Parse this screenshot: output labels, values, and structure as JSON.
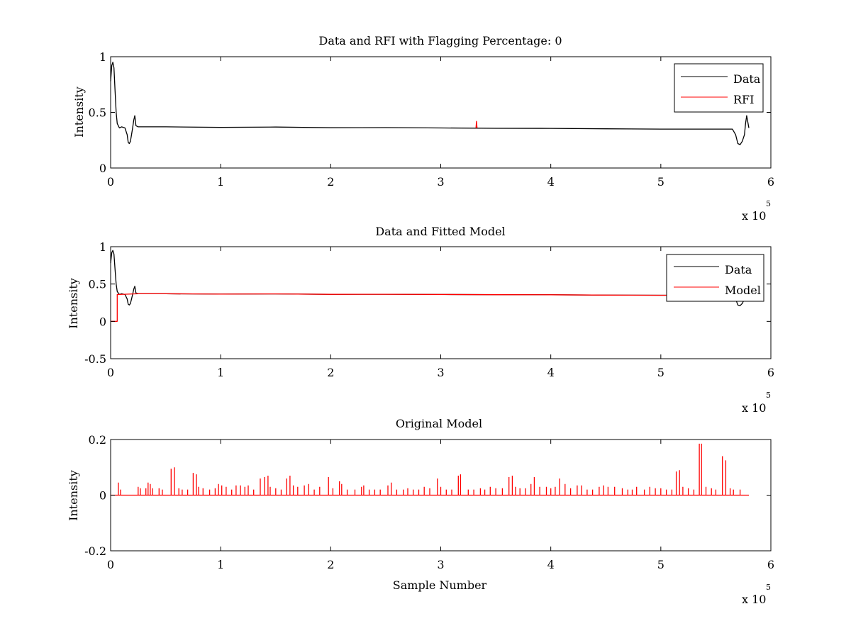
{
  "figure": {
    "background": "#ffffff"
  },
  "colors": {
    "data": "#000000",
    "rfi": "#ff0000",
    "model": "#ff0000",
    "axis": "#000000"
  },
  "chart_data": [
    {
      "type": "line",
      "title": "Data and RFI with Flagging Percentage: 0",
      "xlabel": "",
      "ylabel": "Intensity",
      "xlim": [
        0,
        600000
      ],
      "ylim": [
        0,
        1
      ],
      "xticks": [
        0,
        100000,
        200000,
        300000,
        400000,
        500000,
        600000
      ],
      "xtick_labels": [
        "0",
        "1",
        "2",
        "3",
        "4",
        "5",
        "6"
      ],
      "yticks": [
        0,
        0.5,
        1
      ],
      "ytick_labels": [
        "0",
        "0.5",
        "1"
      ],
      "x_multiplier": "x 10",
      "x_multiplier_exp": "5",
      "legend": {
        "position": "top-right",
        "entries": [
          {
            "label": "Data",
            "color": "#000000"
          },
          {
            "label": "RFI",
            "color": "#ff0000"
          }
        ]
      },
      "series": [
        {
          "name": "Data",
          "color": "#000000",
          "points": [
            [
              0,
              0.78
            ],
            [
              1000,
              0.92
            ],
            [
              2000,
              0.95
            ],
            [
              3000,
              0.9
            ],
            [
              4000,
              0.7
            ],
            [
              5000,
              0.5
            ],
            [
              6000,
              0.4
            ],
            [
              8000,
              0.36
            ],
            [
              10000,
              0.37
            ],
            [
              13000,
              0.36
            ],
            [
              15000,
              0.3
            ],
            [
              16000,
              0.23
            ],
            [
              17000,
              0.22
            ],
            [
              18000,
              0.24
            ],
            [
              19000,
              0.3
            ],
            [
              20000,
              0.36
            ],
            [
              21000,
              0.43
            ],
            [
              22000,
              0.47
            ],
            [
              23000,
              0.38
            ],
            [
              25000,
              0.37
            ],
            [
              50000,
              0.37
            ],
            [
              100000,
              0.365
            ],
            [
              150000,
              0.368
            ],
            [
              200000,
              0.362
            ],
            [
              250000,
              0.363
            ],
            [
              300000,
              0.36
            ],
            [
              350000,
              0.357
            ],
            [
              400000,
              0.356
            ],
            [
              450000,
              0.352
            ],
            [
              500000,
              0.35
            ],
            [
              550000,
              0.35
            ],
            [
              565000,
              0.35
            ],
            [
              568000,
              0.3
            ],
            [
              570000,
              0.22
            ],
            [
              572000,
              0.21
            ],
            [
              574000,
              0.24
            ],
            [
              576000,
              0.3
            ],
            [
              577000,
              0.4
            ],
            [
              578000,
              0.47
            ],
            [
              580000,
              0.36
            ]
          ]
        },
        {
          "name": "RFI",
          "color": "#ff0000",
          "points": [
            [
              332000,
              0.36
            ],
            [
              332500,
              0.42
            ],
            [
              333000,
              0.36
            ]
          ]
        }
      ]
    },
    {
      "type": "line",
      "title": "Data and Fitted Model",
      "xlabel": "",
      "ylabel": "Intensity",
      "xlim": [
        0,
        600000
      ],
      "ylim": [
        -0.5,
        1
      ],
      "xticks": [
        0,
        100000,
        200000,
        300000,
        400000,
        500000,
        600000
      ],
      "xtick_labels": [
        "0",
        "1",
        "2",
        "3",
        "4",
        "5",
        "6"
      ],
      "yticks": [
        -0.5,
        0,
        0.5,
        1
      ],
      "ytick_labels": [
        "-0.5",
        "0",
        "0.5",
        "1"
      ],
      "x_multiplier": "x 10",
      "x_multiplier_exp": "5",
      "legend": {
        "position": "top-right",
        "entries": [
          {
            "label": "Data",
            "color": "#000000"
          },
          {
            "label": "Model",
            "color": "#ff0000"
          }
        ]
      },
      "series": [
        {
          "name": "Data",
          "color": "#000000",
          "points": [
            [
              0,
              0.78
            ],
            [
              1000,
              0.92
            ],
            [
              2000,
              0.95
            ],
            [
              3000,
              0.9
            ],
            [
              4000,
              0.7
            ],
            [
              5000,
              0.5
            ],
            [
              6000,
              0.4
            ],
            [
              8000,
              0.36
            ],
            [
              10000,
              0.37
            ],
            [
              13000,
              0.36
            ],
            [
              15000,
              0.3
            ],
            [
              16000,
              0.23
            ],
            [
              17000,
              0.22
            ],
            [
              18000,
              0.24
            ],
            [
              19000,
              0.3
            ],
            [
              20000,
              0.36
            ],
            [
              21000,
              0.43
            ],
            [
              22000,
              0.47
            ],
            [
              23000,
              0.38
            ],
            [
              25000,
              0.37
            ],
            [
              50000,
              0.37
            ],
            [
              100000,
              0.365
            ],
            [
              150000,
              0.368
            ],
            [
              200000,
              0.362
            ],
            [
              250000,
              0.363
            ],
            [
              300000,
              0.36
            ],
            [
              350000,
              0.357
            ],
            [
              400000,
              0.356
            ],
            [
              450000,
              0.352
            ],
            [
              500000,
              0.35
            ],
            [
              550000,
              0.35
            ],
            [
              565000,
              0.35
            ],
            [
              568000,
              0.3
            ],
            [
              570000,
              0.22
            ],
            [
              572000,
              0.21
            ],
            [
              574000,
              0.24
            ],
            [
              576000,
              0.3
            ],
            [
              577000,
              0.4
            ],
            [
              578000,
              0.47
            ],
            [
              580000,
              0.36
            ]
          ]
        },
        {
          "name": "Model",
          "color": "#ff0000",
          "points": [
            [
              0,
              0
            ],
            [
              6000,
              0
            ],
            [
              6000,
              0.36
            ],
            [
              8000,
              0.36
            ],
            [
              25000,
              0.37
            ],
            [
              50000,
              0.37
            ],
            [
              100000,
              0.365
            ],
            [
              150000,
              0.368
            ],
            [
              200000,
              0.362
            ],
            [
              250000,
              0.363
            ],
            [
              300000,
              0.36
            ],
            [
              350000,
              0.357
            ],
            [
              400000,
              0.356
            ],
            [
              450000,
              0.352
            ],
            [
              500000,
              0.35
            ],
            [
              550000,
              0.35
            ],
            [
              580000,
              0.35
            ]
          ]
        }
      ]
    },
    {
      "type": "line",
      "title": "Original Model",
      "xlabel": "Sample Number",
      "ylabel": "Intensity",
      "xlim": [
        0,
        600000
      ],
      "ylim": [
        -0.2,
        0.2
      ],
      "xticks": [
        0,
        100000,
        200000,
        300000,
        400000,
        500000,
        600000
      ],
      "xtick_labels": [
        "0",
        "1",
        "2",
        "3",
        "4",
        "5",
        "6"
      ],
      "yticks": [
        -0.2,
        0,
        0.2
      ],
      "ytick_labels": [
        "-0.2",
        "0",
        "0.2"
      ],
      "x_multiplier": "x 10",
      "x_multiplier_exp": "5",
      "series": [
        {
          "color": "#ff0000",
          "baseline": 0,
          "x_end": 580000,
          "spikes": [
            [
              7000,
              0.045
            ],
            [
              9000,
              0.02
            ],
            [
              25000,
              0.03
            ],
            [
              27000,
              0.025
            ],
            [
              32000,
              0.025
            ],
            [
              34000,
              0.045
            ],
            [
              36000,
              0.04
            ],
            [
              38000,
              0.025
            ],
            [
              44000,
              0.025
            ],
            [
              47000,
              0.02
            ],
            [
              55000,
              0.095
            ],
            [
              58000,
              0.1
            ],
            [
              62000,
              0.025
            ],
            [
              65000,
              0.02
            ],
            [
              70000,
              0.02
            ],
            [
              75000,
              0.08
            ],
            [
              78000,
              0.075
            ],
            [
              80000,
              0.03
            ],
            [
              84000,
              0.025
            ],
            [
              90000,
              0.02
            ],
            [
              95000,
              0.025
            ],
            [
              98000,
              0.04
            ],
            [
              101000,
              0.035
            ],
            [
              105000,
              0.03
            ],
            [
              110000,
              0.02
            ],
            [
              114000,
              0.035
            ],
            [
              118000,
              0.035
            ],
            [
              122000,
              0.03
            ],
            [
              125000,
              0.035
            ],
            [
              130000,
              0.02
            ],
            [
              136000,
              0.06
            ],
            [
              140000,
              0.065
            ],
            [
              143000,
              0.07
            ],
            [
              145000,
              0.03
            ],
            [
              150000,
              0.025
            ],
            [
              155000,
              0.02
            ],
            [
              160000,
              0.06
            ],
            [
              163000,
              0.07
            ],
            [
              166000,
              0.035
            ],
            [
              170000,
              0.03
            ],
            [
              176000,
              0.035
            ],
            [
              180000,
              0.04
            ],
            [
              185000,
              0.02
            ],
            [
              190000,
              0.03
            ],
            [
              198000,
              0.065
            ],
            [
              202000,
              0.025
            ],
            [
              208000,
              0.05
            ],
            [
              210000,
              0.04
            ],
            [
              215000,
              0.02
            ],
            [
              222000,
              0.02
            ],
            [
              228000,
              0.03
            ],
            [
              230000,
              0.035
            ],
            [
              235000,
              0.02
            ],
            [
              240000,
              0.02
            ],
            [
              245000,
              0.02
            ],
            [
              252000,
              0.035
            ],
            [
              255000,
              0.045
            ],
            [
              260000,
              0.02
            ],
            [
              266000,
              0.02
            ],
            [
              270000,
              0.025
            ],
            [
              275000,
              0.02
            ],
            [
              280000,
              0.02
            ],
            [
              285000,
              0.03
            ],
            [
              290000,
              0.025
            ],
            [
              297000,
              0.06
            ],
            [
              300000,
              0.03
            ],
            [
              305000,
              0.02
            ],
            [
              310000,
              0.02
            ],
            [
              316000,
              0.07
            ],
            [
              318000,
              0.075
            ],
            [
              325000,
              0.02
            ],
            [
              330000,
              0.02
            ],
            [
              336000,
              0.025
            ],
            [
              340000,
              0.02
            ],
            [
              345000,
              0.03
            ],
            [
              350000,
              0.025
            ],
            [
              356000,
              0.025
            ],
            [
              362000,
              0.065
            ],
            [
              365000,
              0.07
            ],
            [
              368000,
              0.03
            ],
            [
              372000,
              0.025
            ],
            [
              377000,
              0.025
            ],
            [
              382000,
              0.04
            ],
            [
              385000,
              0.065
            ],
            [
              390000,
              0.03
            ],
            [
              396000,
              0.03
            ],
            [
              400000,
              0.025
            ],
            [
              404000,
              0.03
            ],
            [
              408000,
              0.06
            ],
            [
              413000,
              0.04
            ],
            [
              418000,
              0.025
            ],
            [
              424000,
              0.035
            ],
            [
              428000,
              0.035
            ],
            [
              433000,
              0.02
            ],
            [
              438000,
              0.02
            ],
            [
              444000,
              0.03
            ],
            [
              448000,
              0.035
            ],
            [
              452000,
              0.03
            ],
            [
              458000,
              0.03
            ],
            [
              465000,
              0.025
            ],
            [
              470000,
              0.02
            ],
            [
              474000,
              0.02
            ],
            [
              478000,
              0.03
            ],
            [
              485000,
              0.02
            ],
            [
              490000,
              0.03
            ],
            [
              495000,
              0.025
            ],
            [
              500000,
              0.025
            ],
            [
              505000,
              0.02
            ],
            [
              510000,
              0.02
            ],
            [
              514000,
              0.085
            ],
            [
              517000,
              0.09
            ],
            [
              520000,
              0.03
            ],
            [
              525000,
              0.025
            ],
            [
              530000,
              0.02
            ],
            [
              535000,
              0.185
            ],
            [
              537000,
              0.185
            ],
            [
              541000,
              0.03
            ],
            [
              546000,
              0.025
            ],
            [
              550000,
              0.02
            ],
            [
              556000,
              0.14
            ],
            [
              559000,
              0.125
            ],
            [
              563000,
              0.025
            ],
            [
              566000,
              0.02
            ],
            [
              572000,
              0.02
            ]
          ]
        }
      ]
    }
  ]
}
